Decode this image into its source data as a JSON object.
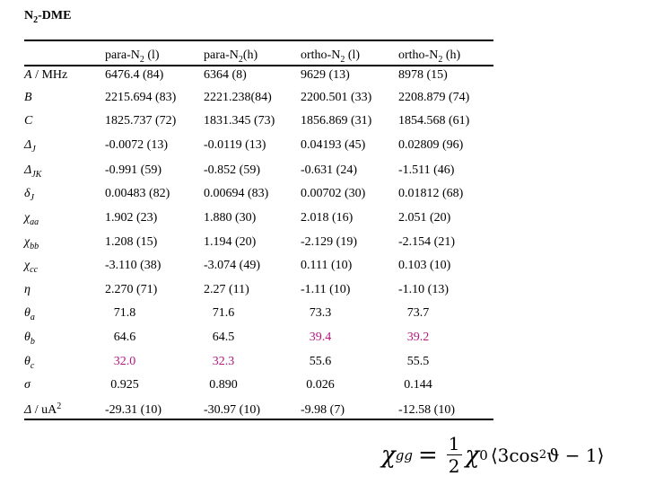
{
  "title": {
    "text": "N",
    "sub": "2",
    "rest": "-DME"
  },
  "table": {
    "columns": [
      {
        "text": "para-N",
        "sub": "2",
        "rest": " (l)"
      },
      {
        "text": "para-N",
        "sub": "2",
        "rest": "(h)"
      },
      {
        "text": "ortho-N",
        "sub": "2",
        "rest": " (l)"
      },
      {
        "text": "ortho-N",
        "sub": "2",
        "rest": " (h)"
      }
    ],
    "rows": [
      {
        "label": {
          "text": "A",
          "rest": " / MHz"
        },
        "cells": [
          "6476.4 (84)",
          "6364 (8)",
          "9629 (13)",
          "8978 (15)"
        ]
      },
      {
        "label": {
          "text": "B"
        },
        "cells": [
          "2215.694 (83)",
          "2221.238(84)",
          "2200.501 (33)",
          "2208.879 (74)"
        ]
      },
      {
        "label": {
          "text": "C"
        },
        "cells": [
          "1825.737 (72)",
          "1831.345 (73)",
          "1856.869 (31)",
          "1854.568 (61)"
        ]
      },
      {
        "label": {
          "text": "Δ",
          "sub": "J"
        },
        "cells": [
          "-0.0072 (13)",
          "-0.0119 (13)",
          "0.04193 (45)",
          "0.02809 (96)"
        ]
      },
      {
        "label": {
          "text": "Δ",
          "sub": "JK"
        },
        "cells": [
          "-0.991 (59)",
          "-0.852 (59)",
          "-0.631 (24)",
          "-1.511 (46)"
        ]
      },
      {
        "label": {
          "text": "δ",
          "sub": "J"
        },
        "cells": [
          "0.00483 (82)",
          "0.00694 (83)",
          "0.00702 (30)",
          "0.01812 (68)"
        ]
      },
      {
        "label": {
          "text": "χ",
          "sub": "aa"
        },
        "cells": [
          "1.902 (23)",
          "1.880 (30)",
          "2.018 (16)",
          "2.051 (20)"
        ]
      },
      {
        "label": {
          "text": "χ",
          "sub": "bb"
        },
        "cells": [
          "1.208 (15)",
          "1.194 (20)",
          "-2.129 (19)",
          "-2.154 (21)"
        ]
      },
      {
        "label": {
          "text": "χ",
          "sub": "cc"
        },
        "cells": [
          "-3.110 (38)",
          "-3.074 (49)",
          "0.111 (10)",
          "0.103 (10)"
        ]
      },
      {
        "label": {
          "text": "η"
        },
        "cells": [
          "2.270 (71)",
          "2.27 (11)",
          "-1.11 (10)",
          "-1.10 (13)"
        ]
      },
      {
        "label": {
          "text": "θ",
          "sub": "a"
        },
        "cells": [
          "71.8",
          "71.6",
          "73.3",
          "73.7"
        ]
      },
      {
        "label": {
          "text": "θ",
          "sub": "b"
        },
        "cells": [
          "64.6",
          "64.5",
          {
            "text": "39.4",
            "color": "#b5157d"
          },
          {
            "text": "39.2",
            "color": "#b5157d"
          }
        ]
      },
      {
        "label": {
          "text": "θ",
          "sub": "c"
        },
        "cells": [
          {
            "text": "32.0",
            "color": "#b5157d"
          },
          {
            "text": "32.3",
            "color": "#b5157d"
          },
          "55.6",
          "55.5"
        ]
      },
      {
        "label": {
          "text": "σ"
        },
        "cells": [
          "0.925",
          "0.890",
          "0.026",
          "0.144"
        ]
      },
      {
        "label": {
          "text": "Δ",
          "rest": " / uA",
          "sup": "2"
        },
        "cells": [
          "-29.31 (10)",
          "-30.97 (10)",
          "-9.98 (7)",
          "-12.58 (10)"
        ]
      }
    ]
  },
  "formula": {
    "lhs": "χ",
    "lhs_sub": "gg",
    "eq": "=",
    "num": "1",
    "den": "2",
    "chi": "χ",
    "chi_sub": "0",
    "open": "⟨3cos",
    "sup": "2",
    "close": " ϑ − 1⟩"
  }
}
